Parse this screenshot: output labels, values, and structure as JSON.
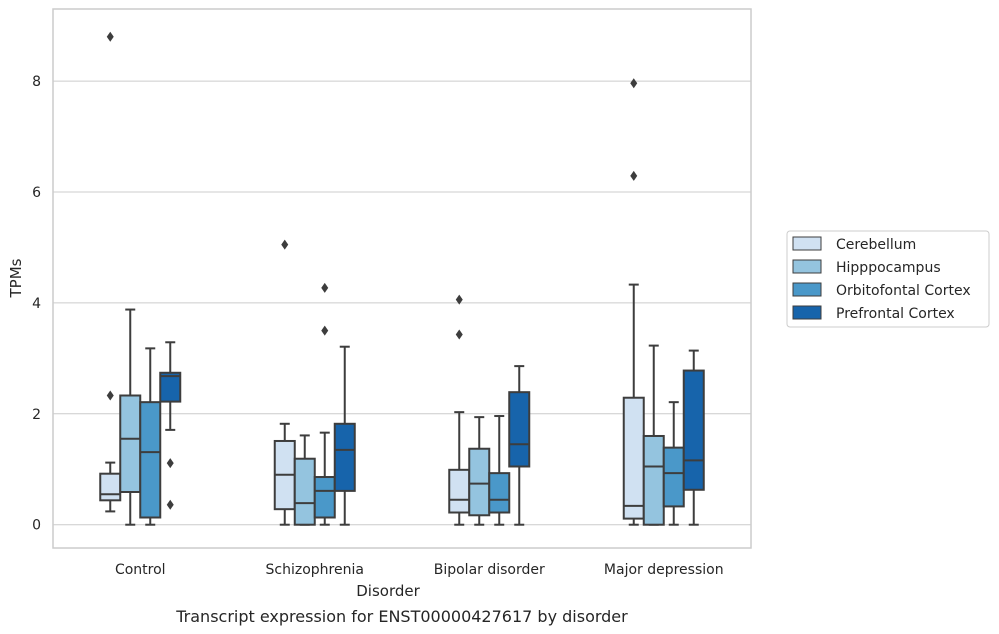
{
  "chart_data": {
    "type": "box",
    "xlabel": "Disorder",
    "ylabel": "TPMs",
    "caption": "Transcript expression for ENST00000427617 by disorder",
    "ylim": [
      -0.42,
      9.3
    ],
    "yticks": [
      0,
      2,
      4,
      6,
      8
    ],
    "grid": "horizontal",
    "legend_position": "right",
    "categories": [
      "Control",
      "Schizophrenia",
      "Bipolar disorder",
      "Major depression"
    ],
    "series": [
      {
        "name": "Cerebellum",
        "color": "#d0e1f2",
        "boxes": [
          {
            "whislo": 0.24,
            "q1": 0.44,
            "med": 0.55,
            "q3": 0.92,
            "whishi": 1.12,
            "fliers": [
              2.33,
              8.8
            ]
          },
          {
            "whislo": 0.0,
            "q1": 0.28,
            "med": 0.9,
            "q3": 1.51,
            "whishi": 1.82,
            "fliers": [
              5.05
            ]
          },
          {
            "whislo": 0.0,
            "q1": 0.22,
            "med": 0.45,
            "q3": 0.99,
            "whishi": 2.03,
            "fliers": [
              3.43,
              4.06
            ]
          },
          {
            "whislo": 0.0,
            "q1": 0.11,
            "med": 0.34,
            "q3": 2.29,
            "whishi": 4.33,
            "fliers": [
              6.29,
              7.96
            ]
          }
        ]
      },
      {
        "name": "Hipppocampus",
        "color": "#94c4df",
        "boxes": [
          {
            "whislo": 0.0,
            "q1": 0.59,
            "med": 1.55,
            "q3": 2.33,
            "whishi": 3.88,
            "fliers": []
          },
          {
            "whislo": 0.0,
            "q1": 0.0,
            "med": 0.39,
            "q3": 1.19,
            "whishi": 1.61,
            "fliers": []
          },
          {
            "whislo": 0.0,
            "q1": 0.17,
            "med": 0.74,
            "q3": 1.37,
            "whishi": 1.94,
            "fliers": []
          },
          {
            "whislo": 0.0,
            "q1": 0.0,
            "med": 1.05,
            "q3": 1.6,
            "whishi": 3.23,
            "fliers": []
          }
        ]
      },
      {
        "name": "Orbitofontal Cortex",
        "color": "#4a98c9",
        "boxes": [
          {
            "whislo": 0.0,
            "q1": 0.13,
            "med": 1.31,
            "q3": 2.21,
            "whishi": 3.18,
            "fliers": []
          },
          {
            "whislo": 0.0,
            "q1": 0.13,
            "med": 0.61,
            "q3": 0.86,
            "whishi": 1.66,
            "fliers": [
              3.5,
              4.27
            ]
          },
          {
            "whislo": 0.0,
            "q1": 0.22,
            "med": 0.45,
            "q3": 0.93,
            "whishi": 1.96,
            "fliers": []
          },
          {
            "whislo": 0.0,
            "q1": 0.33,
            "med": 0.93,
            "q3": 1.39,
            "whishi": 2.21,
            "fliers": []
          }
        ]
      },
      {
        "name": "Prefrontal Cortex",
        "color": "#1764ab",
        "boxes": [
          {
            "whislo": 1.71,
            "q1": 2.22,
            "med": 2.68,
            "q3": 2.74,
            "whishi": 3.29,
            "fliers": [
              0.36,
              1.11
            ]
          },
          {
            "whislo": 0.0,
            "q1": 0.61,
            "med": 1.35,
            "q3": 1.82,
            "whishi": 3.21,
            "fliers": []
          },
          {
            "whislo": 0.0,
            "q1": 1.05,
            "med": 1.45,
            "q3": 2.39,
            "whishi": 2.86,
            "fliers": []
          },
          {
            "whislo": 0.0,
            "q1": 0.63,
            "med": 1.16,
            "q3": 2.78,
            "whishi": 3.14,
            "fliers": []
          }
        ]
      }
    ]
  }
}
